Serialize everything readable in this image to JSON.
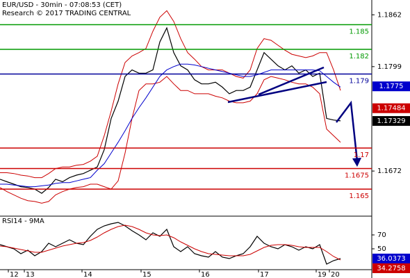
{
  "chart_data": [
    {
      "type": "line",
      "title": "EUR/USD - 30min - 07:08:53 (CET)",
      "subtitle": "Research © 2017 TRADING CENTRAL",
      "x": [
        0,
        2,
        4,
        6,
        8,
        10,
        12,
        14,
        16,
        18,
        20,
        22,
        24,
        26,
        28,
        30,
        32,
        34,
        36,
        38,
        40,
        42,
        44,
        46,
        48,
        50,
        52,
        54,
        56,
        58,
        60,
        62,
        64,
        66,
        68,
        70,
        72,
        74,
        76,
        78,
        80,
        82,
        84,
        86,
        88,
        90,
        92,
        94,
        96,
        98
      ],
      "xlim": [
        0,
        107
      ],
      "ylim": [
        1.1618,
        1.188
      ],
      "yticks": [
        1.1862,
        1.1799,
        1.1672
      ],
      "series": [
        {
          "color": "#000000",
          "values": [
            1.1662,
            1.1659,
            1.1656,
            1.1653,
            1.1652,
            1.165,
            1.1645,
            1.1652,
            1.1662,
            1.1659,
            1.1664,
            1.1667,
            1.1669,
            1.1673,
            1.1677,
            1.1698,
            1.1736,
            1.1757,
            1.1787,
            1.1795,
            1.1791,
            1.1791,
            1.1795,
            1.1829,
            1.1846,
            1.1816,
            1.18,
            1.1795,
            1.1783,
            1.1778,
            1.1778,
            1.178,
            1.1774,
            1.1766,
            1.177,
            1.177,
            1.1774,
            1.1795,
            1.1816,
            1.1808,
            1.18,
            1.1795,
            1.18,
            1.1791,
            1.1795,
            1.1787,
            1.1791,
            1.1736,
            1.1734,
            1.1733
          ]
        },
        {
          "color": "#cc0000",
          "values": [
            1.167,
            1.167,
            1.1669,
            1.1667,
            1.1666,
            1.1664,
            1.1664,
            1.1669,
            1.1675,
            1.1677,
            1.1677,
            1.1679,
            1.168,
            1.1684,
            1.169,
            1.1715,
            1.1745,
            1.1778,
            1.1804,
            1.1812,
            1.1816,
            1.1821,
            1.1842,
            1.1859,
            1.1867,
            1.1854,
            1.1833,
            1.1816,
            1.1808,
            1.1799,
            1.1795,
            1.1795,
            1.1795,
            1.1791,
            1.1787,
            1.1785,
            1.1795,
            1.1821,
            1.1833,
            1.1831,
            1.1825,
            1.1819,
            1.1814,
            1.1812,
            1.181,
            1.1812,
            1.1816,
            1.1816,
            1.1795,
            1.177
          ]
        },
        {
          "color": "#cc0000",
          "values": [
            1.1652,
            1.1647,
            1.1643,
            1.1639,
            1.1636,
            1.1635,
            1.1633,
            1.1635,
            1.1643,
            1.1647,
            1.165,
            1.1652,
            1.1653,
            1.1656,
            1.1656,
            1.1653,
            1.165,
            1.166,
            1.1694,
            1.1736,
            1.177,
            1.1778,
            1.1778,
            1.178,
            1.1787,
            1.1778,
            1.177,
            1.177,
            1.1766,
            1.1766,
            1.1766,
            1.1763,
            1.1761,
            1.1757,
            1.1755,
            1.1755,
            1.1757,
            1.1766,
            1.1783,
            1.1787,
            1.1785,
            1.1783,
            1.178,
            1.1778,
            1.1778,
            1.1774,
            1.1766,
            1.1723,
            1.1715,
            1.1707
          ]
        },
        {
          "color": "#0000cc",
          "values": [
            1.1656,
            1.1656,
            1.1655,
            1.1654,
            1.1653,
            1.1653,
            1.1654,
            1.1655,
            1.1657,
            1.1658,
            1.1658,
            1.166,
            1.1662,
            1.1664,
            1.1673,
            1.1681,
            1.1694,
            1.1707,
            1.1721,
            1.1736,
            1.1749,
            1.1761,
            1.1774,
            1.1787,
            1.1795,
            1.1799,
            1.1802,
            1.1802,
            1.1801,
            1.1799,
            1.1797,
            1.1795,
            1.1793,
            1.1791,
            1.1789,
            1.1787,
            1.1787,
            1.1789,
            1.1792,
            1.1795,
            1.1795,
            1.1795,
            1.1795,
            1.1795,
            1.1795,
            1.1795,
            1.1794,
            1.1787,
            1.178,
            1.1774
          ]
        }
      ],
      "levels": [
        {
          "value": 1.185,
          "color": "#009900"
        },
        {
          "value": 1.182,
          "color": "#009900"
        },
        {
          "value": 1.179,
          "color": "#000099"
        },
        {
          "value": 1.17,
          "color": "#cc0000"
        },
        {
          "value": 1.1675,
          "color": "#cc0000"
        },
        {
          "value": 1.165,
          "color": "#cc0000"
        }
      ],
      "markers": [
        {
          "value": 1.1775,
          "color": "#0000cc"
        },
        {
          "value": 1.17484,
          "color": "#cc0000"
        },
        {
          "value": 1.17329,
          "color": "#000000"
        }
      ]
    },
    {
      "type": "line",
      "title": "RSI14 - 9MA",
      "x": [
        0,
        2,
        4,
        6,
        8,
        10,
        12,
        14,
        16,
        18,
        20,
        22,
        24,
        26,
        28,
        30,
        32,
        34,
        36,
        38,
        40,
        42,
        44,
        46,
        48,
        50,
        52,
        54,
        56,
        58,
        60,
        62,
        64,
        66,
        68,
        70,
        72,
        74,
        76,
        78,
        80,
        82,
        84,
        86,
        88,
        90,
        92,
        94,
        96,
        98
      ],
      "xlim": [
        0,
        107
      ],
      "xticks": [
        {
          "value": 2.4,
          "label": "12"
        },
        {
          "value": 7,
          "label": "13"
        },
        {
          "value": 23.6,
          "label": "14"
        },
        {
          "value": 40.6,
          "label": "15"
        },
        {
          "value": 57.4,
          "label": "16"
        },
        {
          "value": 74.4,
          "label": "17"
        },
        {
          "value": 91,
          "label": "19"
        },
        {
          "value": 94.8,
          "label": "20"
        }
      ],
      "ylim": [
        20,
        96
      ],
      "yticks": [
        70,
        50
      ],
      "series": [
        {
          "color": "#000000",
          "values": [
            56,
            53,
            50,
            43,
            48,
            40,
            46,
            58,
            53,
            58,
            63,
            58,
            56,
            68,
            78,
            83,
            86,
            88,
            83,
            76,
            70,
            63,
            73,
            68,
            78,
            53,
            46,
            53,
            43,
            40,
            38,
            46,
            38,
            36,
            40,
            43,
            53,
            68,
            58,
            53,
            50,
            56,
            53,
            48,
            53,
            50,
            56,
            28,
            33,
            36
          ]
        },
        {
          "color": "#cc0000",
          "values": [
            54,
            53,
            51,
            49,
            47,
            45,
            45,
            48,
            51,
            54,
            56,
            58,
            59,
            62,
            67,
            73,
            78,
            82,
            84,
            82,
            78,
            73,
            70,
            69,
            70,
            66,
            60,
            55,
            50,
            46,
            43,
            42,
            41,
            40,
            40,
            40,
            42,
            47,
            52,
            55,
            56,
            56,
            55,
            53,
            52,
            52,
            52,
            46,
            39,
            34
          ]
        }
      ],
      "markers": [
        {
          "value": 36.0373,
          "color": "#0000cc"
        },
        {
          "value": 34.2758,
          "color": "#cc0000"
        }
      ]
    }
  ]
}
